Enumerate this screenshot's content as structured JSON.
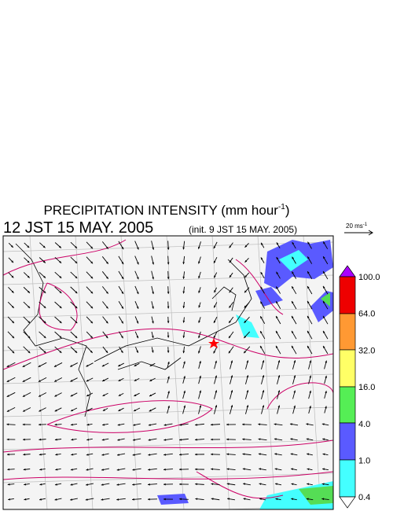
{
  "title": {
    "main": "PRECIPITATION INTENSITY (mm hour",
    "exponent": "-1",
    "close": ")"
  },
  "valid_time": "12 JST 15 MAY. 2005",
  "init_time": "(init. 9 JST 15 MAY. 2005)",
  "wind_scale": {
    "label": "20 ms",
    "exponent": "-1"
  },
  "colorbar": {
    "labels": [
      "100.0",
      "64.0",
      "32.0",
      "16.0",
      "4.0",
      "1.0",
      "0.4"
    ]
  }
}
